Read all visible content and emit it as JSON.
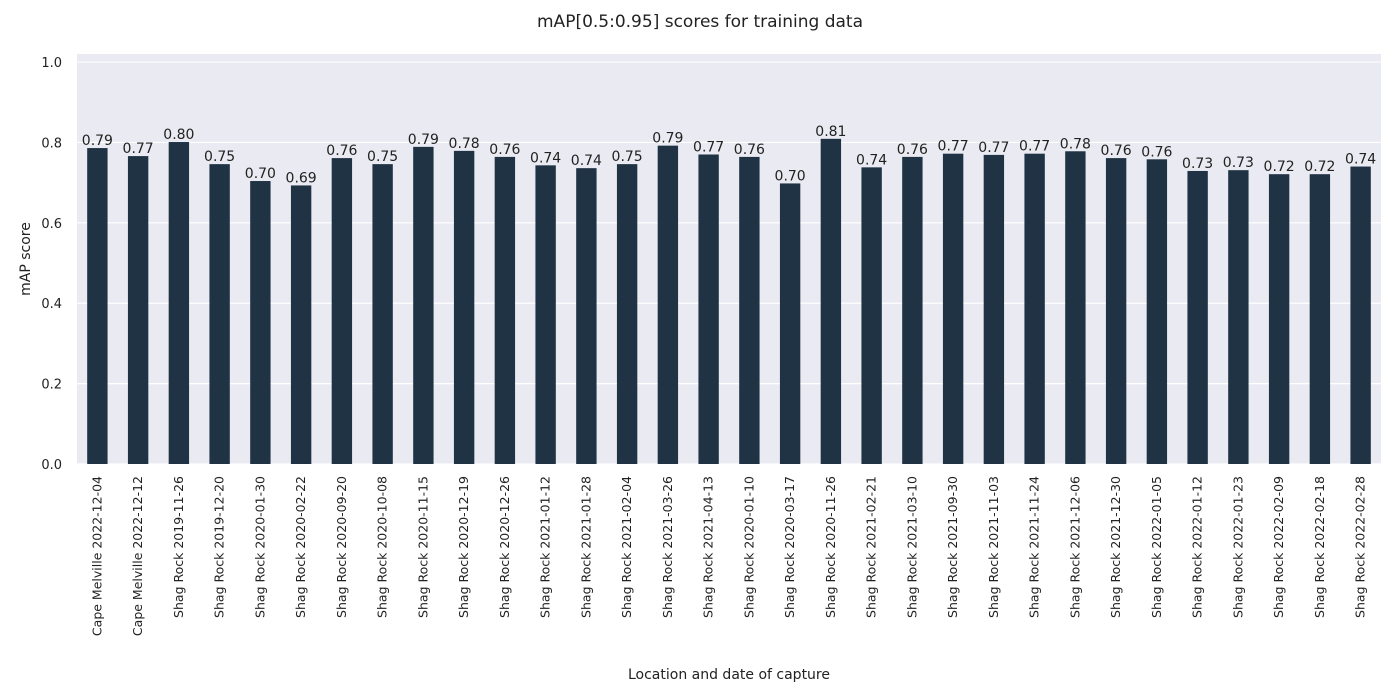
{
  "chart_data": {
    "type": "bar",
    "title": "mAP[0.5:0.95] scores for training data",
    "xlabel": "Location and date of capture",
    "ylabel": "mAP score",
    "ylim": [
      0,
      1.0
    ],
    "yticks": [
      "0.0",
      "0.2",
      "0.4",
      "0.6",
      "0.8",
      "1.0"
    ],
    "grid": true,
    "colors": {
      "bar": "#1f3344",
      "plot_bg": "#eaeaf2",
      "grid": "#ffffff"
    },
    "categories": [
      "Cape Melville 2022-12-04",
      "Cape Melville 2022-12-12",
      "Shag Rock 2019-11-26",
      "Shag Rock 2019-12-20",
      "Shag Rock 2020-01-30",
      "Shag Rock 2020-02-22",
      "Shag Rock 2020-09-20",
      "Shag Rock 2020-10-08",
      "Shag Rock 2020-11-15",
      "Shag Rock 2020-12-19",
      "Shag Rock 2020-12-26",
      "Shag Rock 2021-01-12",
      "Shag Rock 2021-01-28",
      "Shag Rock 2021-02-04",
      "Shag Rock 2021-03-26",
      "Shag Rock 2021-04-13",
      "Shag Rock 2020-01-10",
      "Shag Rock 2020-03-17",
      "Shag Rock 2020-11-26",
      "Shag Rock 2021-02-21",
      "Shag Rock 2021-03-10",
      "Shag Rock 2021-09-30",
      "Shag Rock 2021-11-03",
      "Shag Rock 2021-11-24",
      "Shag Rock 2021-12-06",
      "Shag Rock 2021-12-30",
      "Shag Rock 2022-01-05",
      "Shag Rock 2022-01-12",
      "Shag Rock 2022-01-23",
      "Shag Rock 2022-02-09",
      "Shag Rock 2022-02-18",
      "Shag Rock 2022-02-28"
    ],
    "values": [
      0.786,
      0.766,
      0.801,
      0.746,
      0.704,
      0.693,
      0.761,
      0.746,
      0.789,
      0.779,
      0.764,
      0.743,
      0.736,
      0.746,
      0.792,
      0.77,
      0.764,
      0.698,
      0.809,
      0.738,
      0.764,
      0.772,
      0.769,
      0.772,
      0.778,
      0.761,
      0.758,
      0.729,
      0.731,
      0.721,
      0.721,
      0.74
    ],
    "value_labels": [
      "0.79",
      "0.77",
      "0.80",
      "0.75",
      "0.70",
      "0.69",
      "0.76",
      "0.75",
      "0.79",
      "0.78",
      "0.76",
      "0.74",
      "0.74",
      "0.75",
      "0.79",
      "0.77",
      "0.76",
      "0.70",
      "0.81",
      "0.74",
      "0.76",
      "0.77",
      "0.77",
      "0.77",
      "0.78",
      "0.76",
      "0.76",
      "0.73",
      "0.73",
      "0.72",
      "0.72",
      "0.74"
    ]
  }
}
